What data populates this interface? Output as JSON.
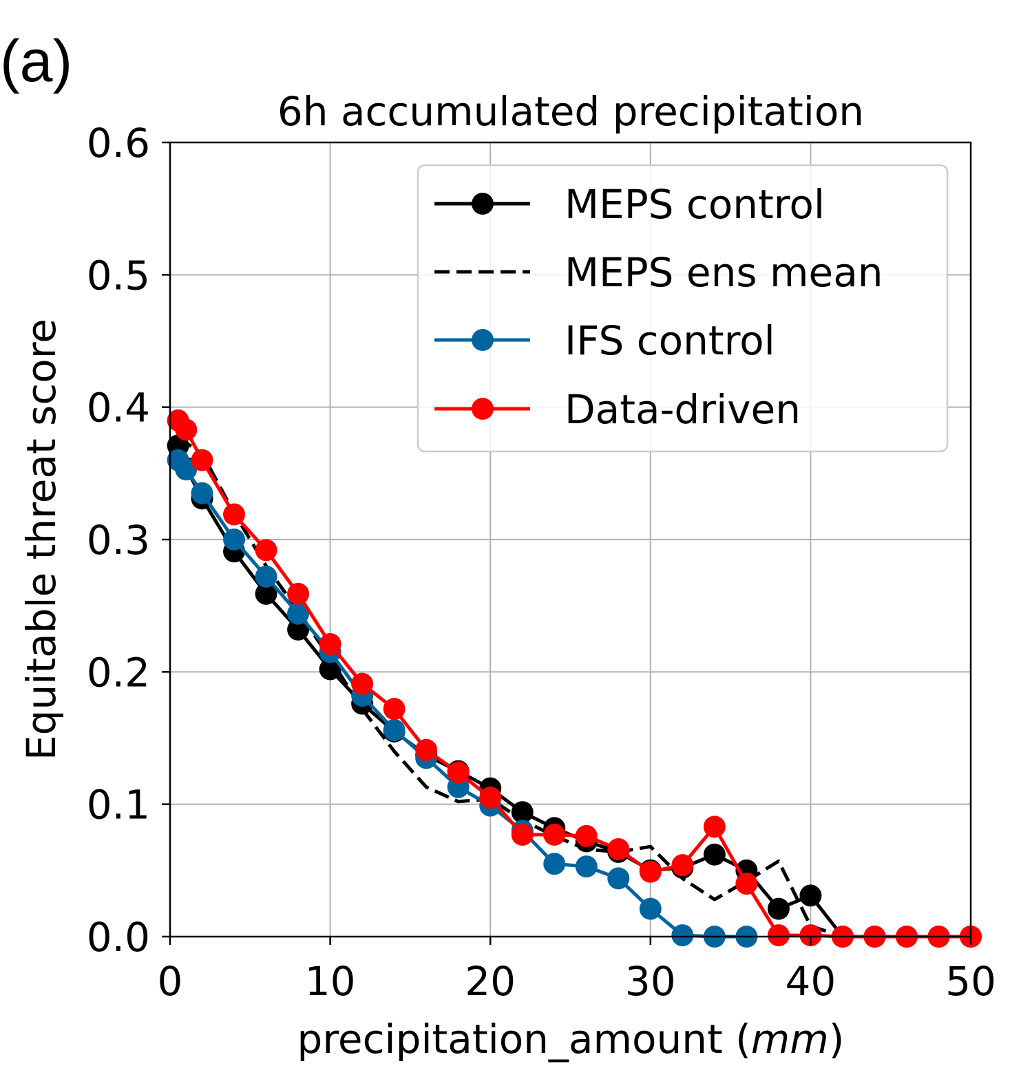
{
  "panel_label": "(a)",
  "chart_data": {
    "type": "line",
    "title": "6h accumulated precipitation",
    "xlabel_main": "precipitation_amount (",
    "xlabel_unit": "mm",
    "xlabel_close": ")",
    "ylabel": "Equitable threat score",
    "xlim": [
      0,
      50
    ],
    "ylim": [
      0,
      0.6
    ],
    "xticks": [
      0,
      10,
      20,
      30,
      40,
      50
    ],
    "xtick_labels": [
      "0",
      "10",
      "20",
      "30",
      "40",
      "50"
    ],
    "yticks": [
      0,
      0.1,
      0.2,
      0.3,
      0.4,
      0.5,
      0.6
    ],
    "ytick_labels": [
      "0.0",
      "0.1",
      "0.2",
      "0.3",
      "0.4",
      "0.5",
      "0.6"
    ],
    "grid": true,
    "legend_position": "top-right",
    "series": [
      {
        "name": "MEPS control",
        "key": "meps-control",
        "color": "#000000",
        "style": "solid",
        "marker": true,
        "x": [
          0.5,
          1,
          2,
          4,
          6,
          8,
          10,
          12,
          14,
          16,
          18,
          20,
          22,
          24,
          26,
          28,
          30,
          32,
          34,
          36,
          38,
          40,
          42,
          44,
          46,
          48,
          50
        ],
        "y": [
          0.371,
          0.354,
          0.331,
          0.291,
          0.259,
          0.232,
          0.202,
          0.176,
          0.155,
          0.137,
          0.125,
          0.112,
          0.094,
          0.082,
          0.072,
          0.064,
          0.05,
          0.052,
          0.062,
          0.05,
          0.021,
          0.031,
          0.0,
          0.0,
          0.0,
          0.0,
          0.0
        ]
      },
      {
        "name": "MEPS ens mean",
        "key": "meps-ens-mean",
        "color": "#000000",
        "style": "dashed",
        "marker": false,
        "x": [
          0.5,
          1,
          2,
          4,
          6,
          8,
          10,
          12,
          14,
          16,
          18,
          20,
          22,
          24,
          26,
          28,
          30,
          32,
          34,
          36,
          38,
          40,
          42,
          44,
          46,
          48,
          50
        ],
        "y": [
          0.376,
          0.373,
          0.365,
          0.32,
          0.28,
          0.246,
          0.21,
          0.172,
          0.14,
          0.113,
          0.102,
          0.104,
          0.088,
          0.076,
          0.066,
          0.064,
          0.068,
          0.044,
          0.028,
          0.042,
          0.057,
          0.008,
          0.0,
          0.0,
          0.0,
          0.0,
          0.0
        ]
      },
      {
        "name": "IFS control",
        "key": "ifs-control",
        "color": "#00649f",
        "style": "solid",
        "marker": true,
        "x": [
          0.5,
          1,
          2,
          4,
          6,
          8,
          10,
          12,
          14,
          16,
          18,
          20,
          22,
          24,
          26,
          28,
          30,
          32,
          34,
          36
        ],
        "y": [
          0.36,
          0.353,
          0.335,
          0.3,
          0.272,
          0.244,
          0.215,
          0.182,
          0.156,
          0.135,
          0.113,
          0.099,
          0.08,
          0.055,
          0.053,
          0.044,
          0.021,
          0.001,
          0.0,
          0.0
        ]
      },
      {
        "name": "Data-driven",
        "key": "data-driven",
        "color": "#ff0000",
        "style": "solid",
        "marker": true,
        "x": [
          0.5,
          1,
          2,
          4,
          6,
          8,
          10,
          12,
          14,
          16,
          18,
          20,
          22,
          24,
          26,
          28,
          30,
          32,
          34,
          36,
          38,
          40,
          42,
          44,
          46,
          48,
          50
        ],
        "y": [
          0.39,
          0.383,
          0.36,
          0.319,
          0.292,
          0.259,
          0.221,
          0.191,
          0.172,
          0.141,
          0.124,
          0.105,
          0.077,
          0.077,
          0.076,
          0.066,
          0.049,
          0.054,
          0.083,
          0.04,
          0.001,
          0.001,
          0.0,
          0.0,
          0.0,
          0.0,
          0.0
        ]
      }
    ]
  }
}
